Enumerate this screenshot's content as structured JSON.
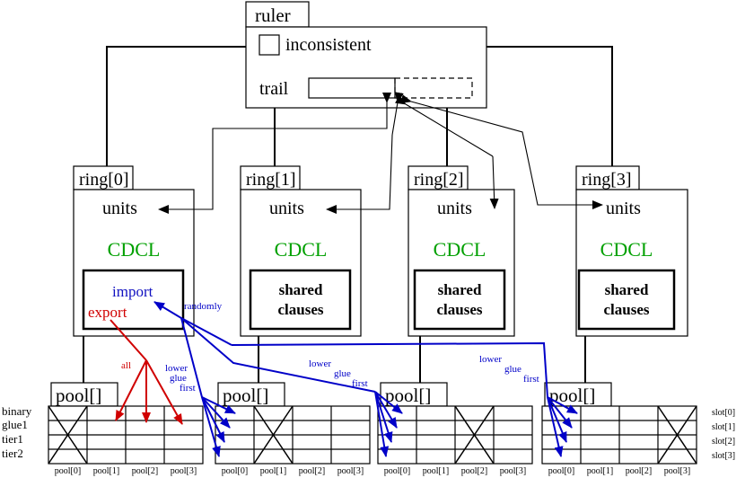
{
  "ruler": {
    "tab": "ruler",
    "inconsistent": "inconsistent",
    "trail": "trail"
  },
  "rings": [
    {
      "tab": "ring[0]",
      "units": "units",
      "cdcl": "CDCL",
      "import": "import",
      "export": "export"
    },
    {
      "tab": "ring[1]",
      "units": "units",
      "cdcl": "CDCL",
      "shared1": "shared",
      "shared2": "clauses"
    },
    {
      "tab": "ring[2]",
      "units": "units",
      "cdcl": "CDCL",
      "shared1": "shared",
      "shared2": "clauses"
    },
    {
      "tab": "ring[3]",
      "units": "units",
      "cdcl": "CDCL",
      "shared1": "shared",
      "shared2": "clauses"
    }
  ],
  "pools": {
    "tab": "pool[]",
    "row_labels": [
      "binary",
      "glue1",
      "tier1",
      "tier2"
    ],
    "slot_labels": [
      "slot[0]",
      "slot[1]",
      "slot[2]",
      "slot[3]"
    ],
    "col_labels": [
      "pool[0]",
      "pool[1]",
      "pool[2]",
      "pool[3]"
    ]
  },
  "annotations": {
    "randomly": "randomly",
    "all": "all",
    "lower": "lower",
    "glue": "glue",
    "first": "first"
  },
  "colors": {
    "cdcl": "#00a000",
    "import": "#1010c0",
    "export": "#d00000",
    "blue": "#0000c8",
    "red": "#d00000"
  }
}
